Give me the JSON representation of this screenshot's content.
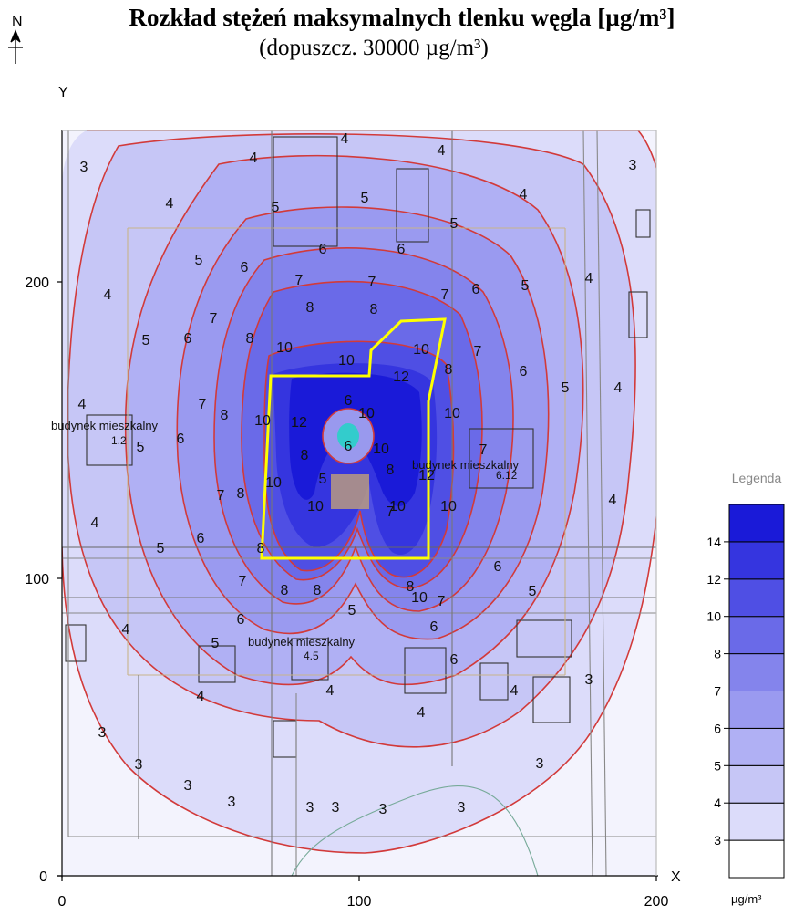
{
  "title": {
    "line1": "Rozkład stężeń maksymalnych tlenku węgla [µg/m³]",
    "line2": "(dopuszcz. 30000 µg/m³)"
  },
  "north_label": "N",
  "axes": {
    "y_label": "Y",
    "x_label": "X",
    "x_ticks": [
      "0",
      "100",
      "200"
    ],
    "y_ticks": [
      "0",
      "100",
      "200"
    ],
    "x_range": [
      0,
      200
    ],
    "y_range": [
      0,
      250
    ]
  },
  "building_labels": [
    "budynek mieszkalny",
    "budynek mieszkalny",
    "budynek mieszkalny"
  ],
  "small_values": [
    "1.2",
    "6.12",
    "4.5"
  ],
  "contour_labels": [
    "3",
    "4",
    "5",
    "6",
    "7",
    "8",
    "10",
    "12"
  ],
  "legend": {
    "title": "Legenda",
    "unit": "µg/m³",
    "levels": [
      "3",
      "4",
      "5",
      "6",
      "7",
      "8",
      "10",
      "12",
      "14"
    ],
    "colors": [
      "#ffffff",
      "#dcdcfa",
      "#c6c6f6",
      "#b0b0f4",
      "#9a9af0",
      "#8484ec",
      "#6a6ae8",
      "#4f4fe4",
      "#3535df",
      "#1a1ad8"
    ]
  },
  "colors": {
    "contour_line": "#d23a3a",
    "site_boundary": "#ffff00",
    "accent": "#1a1ad8"
  }
}
